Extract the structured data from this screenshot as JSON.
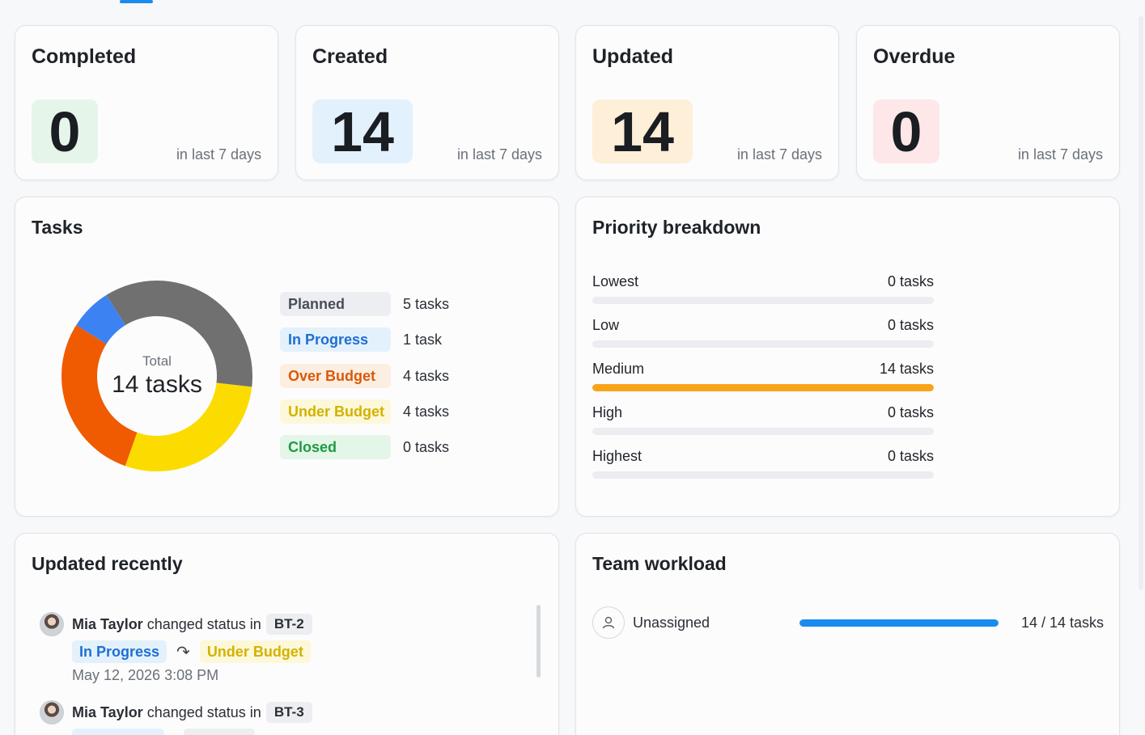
{
  "stats": [
    {
      "title": "Completed",
      "value": "0",
      "sub": "in last 7 days",
      "bg": "#e6f5ea"
    },
    {
      "title": "Created",
      "value": "14",
      "sub": "in last 7 days",
      "bg": "#e3f1fd"
    },
    {
      "title": "Updated",
      "value": "14",
      "sub": "in last 7 days",
      "bg": "#fdefd8"
    },
    {
      "title": "Overdue",
      "value": "0",
      "sub": "in last 7 days",
      "bg": "#fde7e8"
    }
  ],
  "tasks": {
    "title": "Tasks",
    "total_label": "Total",
    "total_value": "14 tasks",
    "legend": [
      {
        "label": "Planned",
        "count": "5 tasks",
        "text_color": "#4a4e55",
        "bg": "#eceef1"
      },
      {
        "label": "In Progress",
        "count": "1 task",
        "text_color": "#1f6fd1",
        "bg": "#e3f1fd"
      },
      {
        "label": "Over Budget",
        "count": "4 tasks",
        "text_color": "#d9590a",
        "bg": "#fdeee2"
      },
      {
        "label": "Under Budget",
        "count": "4 tasks",
        "text_color": "#d4b200",
        "bg": "#fcf8d9"
      },
      {
        "label": "Closed",
        "count": "0 tasks",
        "text_color": "#1f9a44",
        "bg": "#e3f6e8"
      }
    ]
  },
  "chart_data": {
    "type": "pie",
    "categories": [
      "Planned",
      "In Progress",
      "Over Budget",
      "Under Budget",
      "Closed"
    ],
    "values": [
      5,
      1,
      4,
      4,
      0
    ],
    "colors": [
      "#707070",
      "#3d82f2",
      "#f05a00",
      "#fcdc00",
      "#2fb352"
    ],
    "title": "",
    "legend": "right"
  },
  "priority": {
    "title": "Priority breakdown",
    "rows": [
      {
        "label": "Lowest",
        "count": "0 tasks",
        "value": 0
      },
      {
        "label": "Low",
        "count": "0 tasks",
        "value": 0
      },
      {
        "label": "Medium",
        "count": "14 tasks",
        "value": 14
      },
      {
        "label": "High",
        "count": "0 tasks",
        "value": 0
      },
      {
        "label": "Highest",
        "count": "0 tasks",
        "value": 0
      }
    ],
    "total": 14
  },
  "recent": {
    "title": "Updated recently",
    "items": [
      {
        "user": "Mia Taylor",
        "action": "changed status in",
        "key": "BT-2",
        "from": "In Progress",
        "to": "Under Budget",
        "date": "May 12, 2026 3:08 PM"
      },
      {
        "user": "Mia Taylor",
        "action": "changed status in",
        "key": "BT-3"
      }
    ]
  },
  "workload": {
    "title": "Team workload",
    "rows": [
      {
        "name": "Unassigned",
        "count": "14 / 14 tasks",
        "fraction": 1.0
      }
    ]
  }
}
